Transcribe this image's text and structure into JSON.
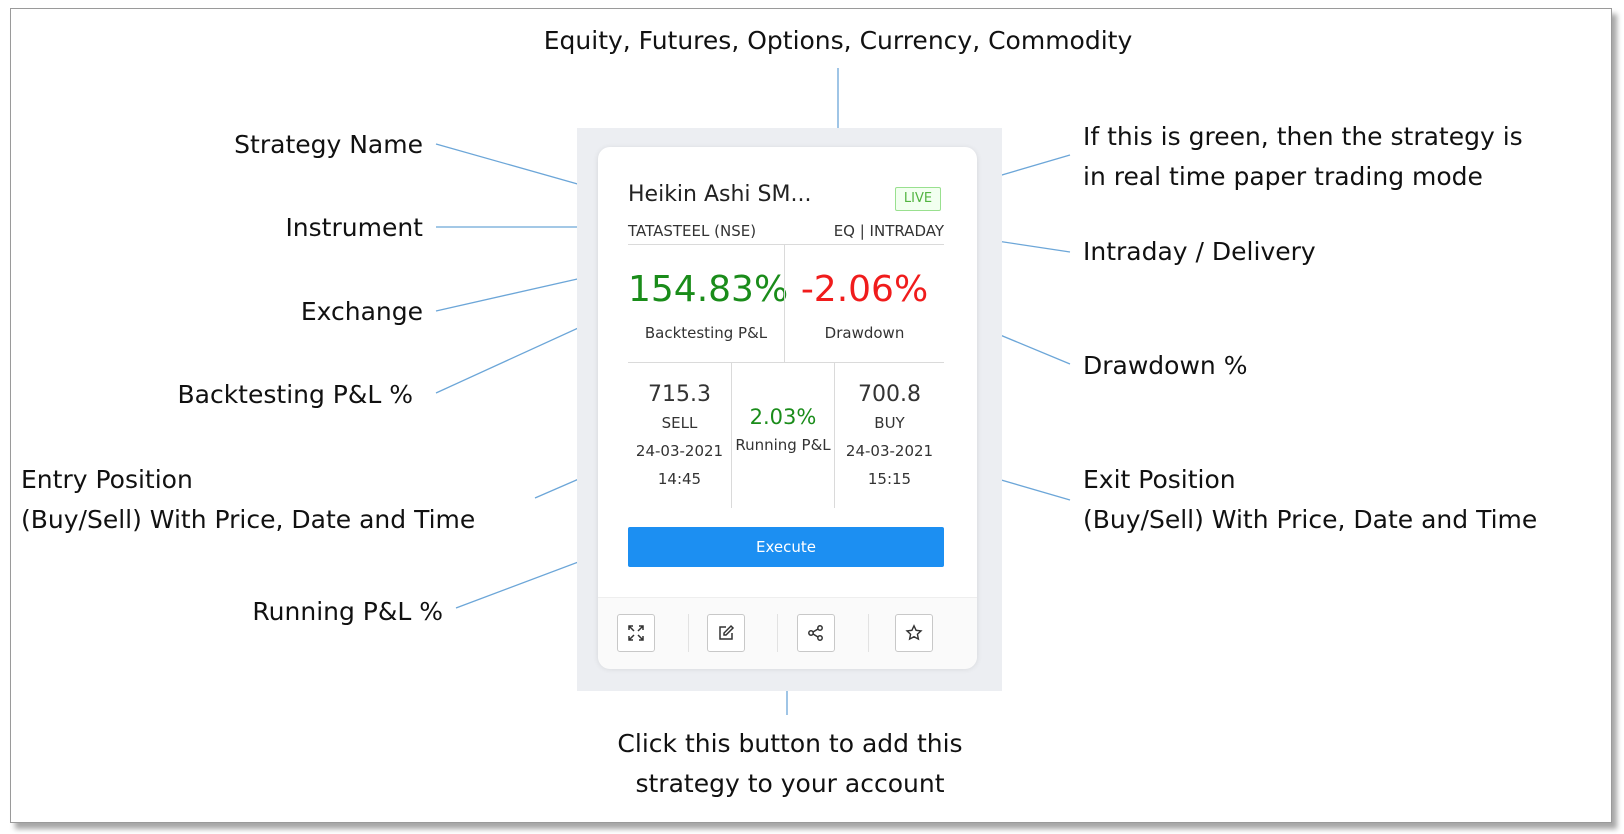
{
  "annotations": {
    "instrument_types": "Equity, Futures, Options, Currency, Commodity",
    "strategy_name": "Strategy Name",
    "instrument": "Instrument",
    "exchange": "Exchange",
    "backtesting_pnl": "Backtesting P&L %",
    "entry_position": [
      "Entry Position",
      "(Buy/Sell) With Price, Date and Time"
    ],
    "running_pnl": "Running P&L %",
    "live_note": [
      "If this is green, then the strategy is",
      "in real time paper trading mode"
    ],
    "intraday_delivery": "Intraday / Delivery",
    "drawdown": "Drawdown %",
    "exit_position": [
      "Exit Position",
      "(Buy/Sell) With Price, Date and Time"
    ],
    "execute_note": [
      "Click this button to add this",
      "strategy to your account"
    ]
  },
  "card": {
    "title": "Heikin Ashi SM...",
    "live_badge": "LIVE",
    "instrument": "TATASTEEL (NSE)",
    "segment": "EQ | INTRADAY",
    "backtesting_pnl": "154.83%",
    "backtesting_label": "Backtesting P&L",
    "drawdown": "-2.06%",
    "drawdown_label": "Drawdown",
    "entry": {
      "price": "715.3",
      "side": "SELL",
      "date": "24-03-2021",
      "time": "14:45"
    },
    "running_pnl": "2.03%",
    "running_label": "Running P&L",
    "exit": {
      "price": "700.8",
      "side": "BUY",
      "date": "24-03-2021",
      "time": "15:15"
    },
    "execute_label": "Execute",
    "footer_icons": [
      "expand-icon",
      "edit-icon",
      "share-icon",
      "star-icon"
    ]
  },
  "colors": {
    "positive": "#1a8c1a",
    "negative": "#f01c1c",
    "execute": "#1c8ff2",
    "live_border": "#99e08f",
    "connector": "#6ca6d8"
  }
}
